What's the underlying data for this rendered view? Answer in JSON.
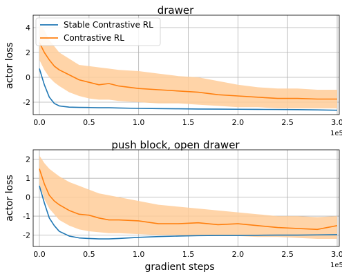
{
  "colors": {
    "stable": "#1f77b4",
    "contrastive": "#ff7f0e",
    "band": "#ffcc99"
  },
  "legend": {
    "placement": "top-left",
    "entries": [
      "Stable Contrastive RL",
      "Contrastive RL"
    ]
  },
  "chart_data": [
    {
      "type": "line",
      "title": "drawer",
      "xlabel": "",
      "ylabel": "actor loss",
      "x_scale_label": "1e5",
      "xlim": [
        0,
        3.0
      ],
      "ylim": [
        -3.0,
        5.0
      ],
      "xticks": [
        "0.0",
        "0.5",
        "1.0",
        "1.5",
        "2.0",
        "2.5",
        "3.0"
      ],
      "yticks": [
        "4",
        "2",
        "0",
        "-2"
      ],
      "grid": true,
      "x": [
        0,
        0.05,
        0.1,
        0.15,
        0.2,
        0.3,
        0.4,
        0.5,
        0.6,
        0.7,
        0.8,
        1.0,
        1.2,
        1.4,
        1.6,
        1.8,
        2.0,
        2.2,
        2.4,
        2.6,
        2.8,
        3.0
      ],
      "series": [
        {
          "name": "Stable Contrastive RL",
          "color": "#1f77b4",
          "values": [
            0.7,
            -0.6,
            -1.6,
            -2.1,
            -2.3,
            -2.4,
            -2.42,
            -2.43,
            -2.45,
            -2.45,
            -2.47,
            -2.5,
            -2.52,
            -2.53,
            -2.55,
            -2.56,
            -2.57,
            -2.58,
            -2.59,
            -2.6,
            -2.62,
            -2.65
          ]
        },
        {
          "name": "Contrastive RL",
          "color": "#ff7f0e",
          "values": [
            2.8,
            2.0,
            1.4,
            0.9,
            0.6,
            0.2,
            -0.2,
            -0.4,
            -0.6,
            -0.5,
            -0.7,
            -0.9,
            -1.0,
            -1.1,
            -1.2,
            -1.4,
            -1.5,
            -1.6,
            -1.7,
            -1.7,
            -1.75,
            -1.75
          ],
          "band_upper": [
            4.2,
            3.8,
            3.0,
            2.5,
            2.0,
            1.5,
            1.0,
            0.9,
            0.8,
            0.7,
            0.6,
            0.5,
            0.3,
            0.1,
            0.0,
            -0.3,
            -0.6,
            -0.8,
            -0.9,
            -0.9,
            -1.0,
            -1.0
          ],
          "band_lower": [
            1.4,
            0.6,
            0.0,
            -0.4,
            -0.7,
            -1.2,
            -1.5,
            -1.7,
            -1.8,
            -1.8,
            -1.9,
            -2.0,
            -2.1,
            -2.1,
            -2.2,
            -2.3,
            -2.4,
            -2.4,
            -2.5,
            -2.5,
            -2.5,
            -2.5
          ]
        }
      ]
    },
    {
      "type": "line",
      "title": "push block, open drawer",
      "xlabel": "gradient steps",
      "ylabel": "actor loss",
      "x_scale_label": "1e5",
      "xlim": [
        0,
        3.0
      ],
      "ylim": [
        -2.6,
        2.5
      ],
      "xticks": [
        "0.0",
        "0.5",
        "1.0",
        "1.5",
        "2.0",
        "2.5",
        "3.0"
      ],
      "yticks": [
        "2",
        "1",
        "0",
        "-1",
        "-2"
      ],
      "grid": true,
      "x": [
        0,
        0.05,
        0.1,
        0.15,
        0.2,
        0.3,
        0.4,
        0.5,
        0.6,
        0.7,
        0.8,
        1.0,
        1.2,
        1.4,
        1.6,
        1.8,
        2.0,
        2.2,
        2.4,
        2.6,
        2.8,
        3.0
      ],
      "series": [
        {
          "name": "Stable Contrastive RL",
          "color": "#1f77b4",
          "values": [
            0.6,
            -0.3,
            -1.1,
            -1.5,
            -1.8,
            -2.05,
            -2.15,
            -2.18,
            -2.2,
            -2.2,
            -2.18,
            -2.12,
            -2.08,
            -2.05,
            -2.03,
            -2.02,
            -2.02,
            -2.01,
            -2.0,
            -2.0,
            -1.99,
            -1.98
          ]
        },
        {
          "name": "Contrastive RL",
          "color": "#ff7f0e",
          "values": [
            1.5,
            0.7,
            0.1,
            -0.2,
            -0.4,
            -0.7,
            -0.9,
            -0.95,
            -1.1,
            -1.2,
            -1.2,
            -1.25,
            -1.4,
            -1.4,
            -1.35,
            -1.45,
            -1.4,
            -1.5,
            -1.6,
            -1.65,
            -1.7,
            -1.5
          ],
          "band_upper": [
            2.2,
            1.8,
            1.5,
            1.3,
            1.1,
            0.8,
            0.6,
            0.4,
            0.2,
            0.1,
            0.0,
            -0.2,
            -0.4,
            -0.5,
            -0.6,
            -0.7,
            -0.8,
            -0.9,
            -1.0,
            -1.0,
            -1.05,
            -1.0
          ],
          "band_lower": [
            0.7,
            -0.1,
            -0.6,
            -0.9,
            -1.2,
            -1.5,
            -1.7,
            -1.8,
            -1.85,
            -1.9,
            -1.9,
            -1.95,
            -2.0,
            -2.0,
            -2.05,
            -2.05,
            -2.05,
            -2.1,
            -2.1,
            -2.15,
            -2.2,
            -2.2
          ]
        }
      ]
    }
  ]
}
